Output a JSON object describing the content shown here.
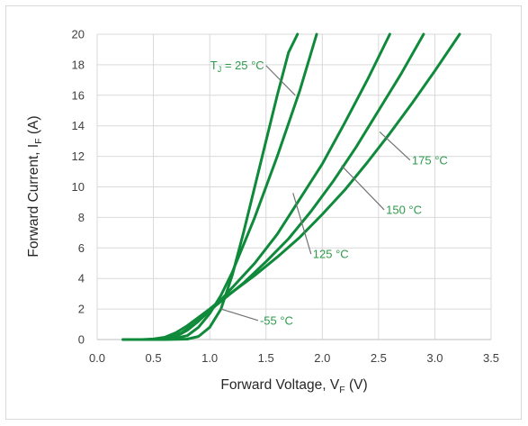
{
  "chart_data": {
    "type": "line",
    "xlabel": "Forward Voltage, V",
    "xlabel_sub": "F",
    "xlabel_unit": " (V)",
    "ylabel": "Forward Current, I",
    "ylabel_sub": "F",
    "ylabel_unit": " (A)",
    "xlim": [
      0,
      3.5
    ],
    "ylim": [
      0,
      20
    ],
    "x_ticks": [
      "0.0",
      "0.5",
      "1.0",
      "1.5",
      "2.0",
      "2.5",
      "3.0",
      "3.5"
    ],
    "y_ticks": [
      "0",
      "2",
      "4",
      "6",
      "8",
      "10",
      "12",
      "14",
      "16",
      "18",
      "20"
    ],
    "grid": true,
    "line_color": "#0e8a3a",
    "annotation_color": "#2e9a4b",
    "series": [
      {
        "name": "-55 °C",
        "x": [
          0.23,
          0.6,
          0.8,
          0.9,
          1.0,
          1.1,
          1.2,
          1.3,
          1.4,
          1.5,
          1.6,
          1.7,
          1.78
        ],
        "y": [
          0,
          0,
          0.03,
          0.2,
          0.8,
          2.0,
          4.2,
          7.0,
          10.0,
          13.0,
          16.0,
          18.8,
          20
        ]
      },
      {
        "name": "T",
        "x": [
          0.23,
          0.5,
          0.65,
          0.8,
          0.9,
          1.0,
          1.1,
          1.2,
          1.4,
          1.6,
          1.8,
          1.95
        ],
        "y": [
          0,
          0,
          0.02,
          0.25,
          0.8,
          1.7,
          2.9,
          4.4,
          8.0,
          12.0,
          16.3,
          20
        ]
      },
      {
        "name": "125 °C",
        "x": [
          0.23,
          0.5,
          0.6,
          0.7,
          0.8,
          0.9,
          1.0,
          1.1,
          1.2,
          1.4,
          1.6,
          1.8,
          2.0,
          2.2,
          2.4,
          2.6
        ],
        "y": [
          0,
          0,
          0.03,
          0.2,
          0.6,
          1.2,
          1.9,
          2.6,
          3.4,
          5.0,
          6.9,
          9.2,
          11.5,
          14.2,
          17.0,
          20
        ]
      },
      {
        "name": "150 °C",
        "x": [
          0.23,
          0.45,
          0.55,
          0.65,
          0.75,
          0.85,
          0.95,
          1.05,
          1.15,
          1.3,
          1.5,
          1.7,
          1.9,
          2.1,
          2.3,
          2.5,
          2.7,
          2.9
        ],
        "y": [
          0,
          0,
          0.03,
          0.15,
          0.45,
          0.95,
          1.55,
          2.2,
          2.8,
          3.7,
          5.1,
          6.6,
          8.4,
          10.4,
          12.6,
          15.0,
          17.4,
          20
        ]
      },
      {
        "name": "175 °C",
        "x": [
          0.23,
          0.4,
          0.5,
          0.6,
          0.7,
          0.8,
          0.9,
          1.0,
          1.1,
          1.2,
          1.4,
          1.6,
          1.8,
          2.0,
          2.2,
          2.4,
          2.6,
          2.8,
          3.0,
          3.22
        ],
        "y": [
          0,
          0,
          0.04,
          0.15,
          0.45,
          0.9,
          1.45,
          2.0,
          2.6,
          3.1,
          4.2,
          5.4,
          6.7,
          8.2,
          9.8,
          11.6,
          13.5,
          15.5,
          17.6,
          20
        ]
      }
    ],
    "annotations": [
      {
        "text": "T",
        "sub": "J",
        "rest": " = 25 °C",
        "anchor": [
          1.76,
          16.0
        ],
        "label_at": [
          1.5,
          17.95
        ]
      },
      {
        "text": "175 °C",
        "anchor": [
          2.51,
          13.6
        ],
        "label_at": [
          2.78,
          11.75
        ]
      },
      {
        "text": "150 °C",
        "anchor": [
          2.17,
          11.4
        ],
        "label_at": [
          2.55,
          8.5
        ]
      },
      {
        "text": "125 °C",
        "anchor": [
          1.74,
          9.6
        ],
        "label_at": [
          1.9,
          5.6
        ]
      },
      {
        "text": "-55 °C",
        "anchor": [
          1.1,
          2.0
        ],
        "label_at": [
          1.43,
          1.25
        ]
      }
    ]
  }
}
